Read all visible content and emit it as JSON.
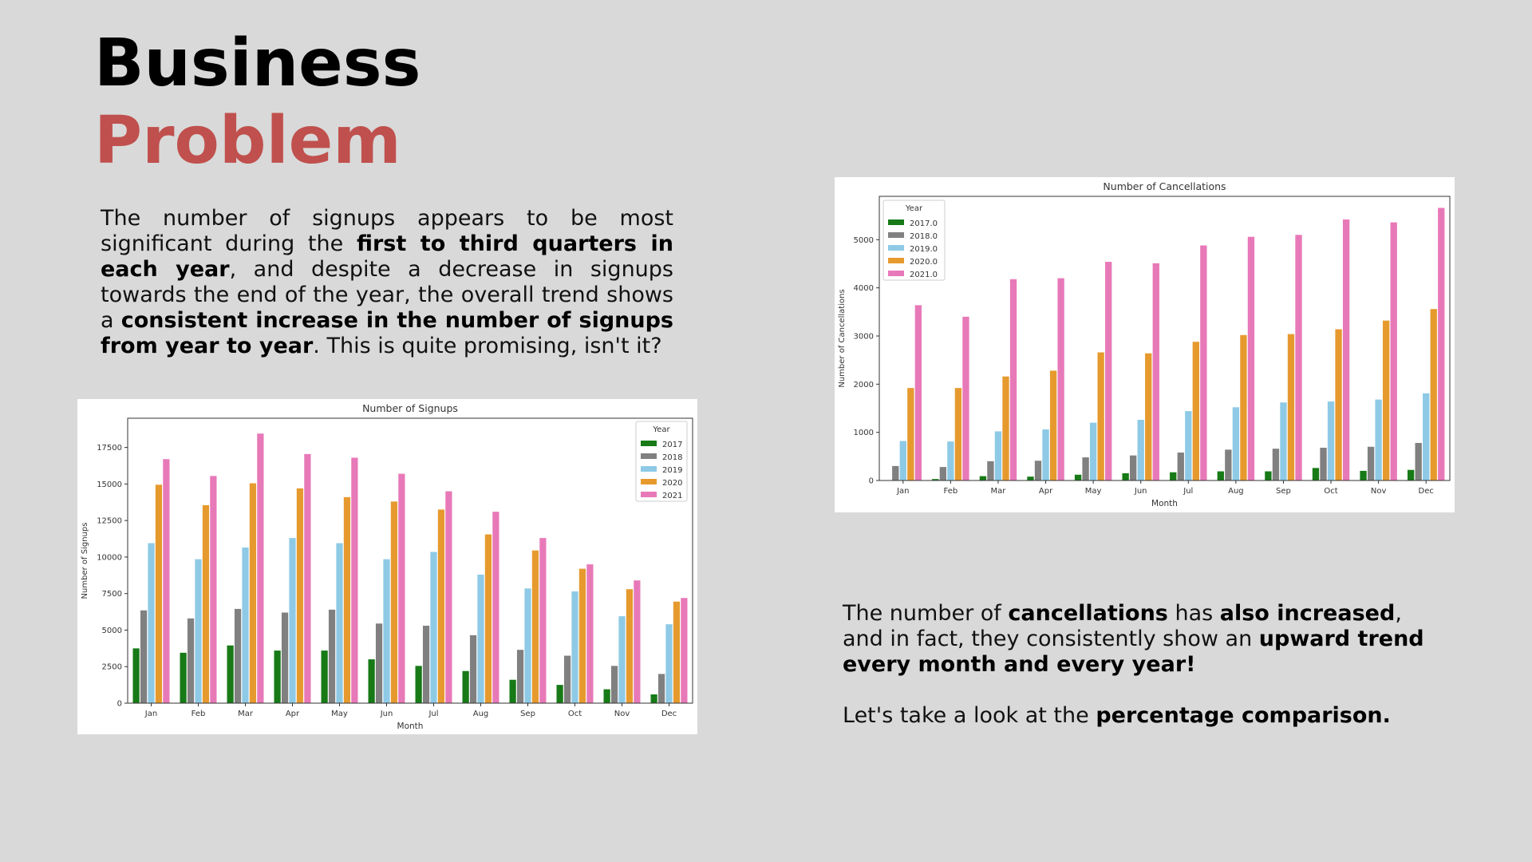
{
  "heading": {
    "line1": "Business",
    "line2": "Problem"
  },
  "paragraph1": {
    "t1": "The number of signups appears to be most significant during the ",
    "b1": "first to third quarters in each year",
    "t2": ", and despite a decrease in signups towards the end of the year, the overall trend shows a ",
    "b2": "consistent increase in the number of signups from year to year",
    "t3": ". This is quite promising, isn't it?"
  },
  "paragraph2": {
    "t1": "The number of ",
    "b1": "cancellations",
    "t2": " has ",
    "b2": "also increased",
    "t3": ", and in fact, they consistently show an ",
    "b3": "upward trend every month and every year!"
  },
  "paragraph3": {
    "t1": "Let's take a look at the ",
    "b1": "percentage comparison."
  },
  "colors": {
    "title_accent": "#c0504d",
    "series": [
      "#177a17",
      "#808080",
      "#8ecae6",
      "#e69a2e",
      "#e879b8"
    ]
  },
  "chart_data": [
    {
      "type": "bar",
      "title": "Number of Signups",
      "xlabel": "Month",
      "ylabel": "Number of Signups",
      "ylim": [
        0,
        19500
      ],
      "yticks": [
        0,
        2500,
        5000,
        7500,
        10000,
        12500,
        15000,
        17500
      ],
      "legend_title": "Year",
      "legend_position": "top-right",
      "grid": false,
      "categories": [
        "Jan",
        "Feb",
        "Mar",
        "Apr",
        "May",
        "Jun",
        "Jul",
        "Aug",
        "Sep",
        "Oct",
        "Nov",
        "Dec"
      ],
      "series": [
        {
          "name": "2017",
          "values": [
            3750,
            3450,
            3950,
            3600,
            3600,
            3000,
            2550,
            2200,
            1600,
            1250,
            950,
            600
          ]
        },
        {
          "name": "2018",
          "values": [
            6350,
            5800,
            6450,
            6200,
            6400,
            5450,
            5300,
            4650,
            3650,
            3250,
            2550,
            2000
          ]
        },
        {
          "name": "2019",
          "values": [
            10950,
            9850,
            10650,
            11300,
            10950,
            9850,
            10350,
            8800,
            7850,
            7650,
            5950,
            5400
          ]
        },
        {
          "name": "2020",
          "values": [
            14950,
            13550,
            15050,
            14700,
            14100,
            13800,
            13250,
            11550,
            10450,
            9200,
            7800,
            6950
          ]
        },
        {
          "name": "2021",
          "values": [
            16700,
            15550,
            18450,
            17050,
            16800,
            15700,
            14500,
            13100,
            11300,
            9500,
            8400,
            7200
          ]
        }
      ]
    },
    {
      "type": "bar",
      "title": "Number of Cancellations",
      "xlabel": "Month",
      "ylabel": "Number of Cancellations",
      "ylim": [
        0,
        5900
      ],
      "yticks": [
        0,
        1000,
        2000,
        3000,
        4000,
        5000
      ],
      "legend_title": "Year",
      "legend_position": "top-left",
      "grid": false,
      "categories": [
        "Jan",
        "Feb",
        "Mar",
        "Apr",
        "May",
        "Jun",
        "Jul",
        "Aug",
        "Sep",
        "Oct",
        "Nov",
        "Dec"
      ],
      "series": [
        {
          "name": "2017.0",
          "values": [
            0,
            30,
            90,
            80,
            120,
            150,
            170,
            190,
            190,
            260,
            200,
            220
          ]
        },
        {
          "name": "2018.0",
          "values": [
            300,
            280,
            400,
            410,
            480,
            520,
            580,
            640,
            660,
            680,
            700,
            780
          ]
        },
        {
          "name": "2019.0",
          "values": [
            820,
            810,
            1020,
            1060,
            1200,
            1260,
            1440,
            1520,
            1620,
            1640,
            1680,
            1810
          ]
        },
        {
          "name": "2020.0",
          "values": [
            1920,
            1920,
            2160,
            2280,
            2660,
            2640,
            2880,
            3020,
            3040,
            3140,
            3320,
            3560
          ]
        },
        {
          "name": "2021.0",
          "values": [
            3640,
            3400,
            4180,
            4200,
            4540,
            4510,
            4880,
            5060,
            5100,
            5420,
            5360,
            5660
          ]
        }
      ]
    }
  ]
}
